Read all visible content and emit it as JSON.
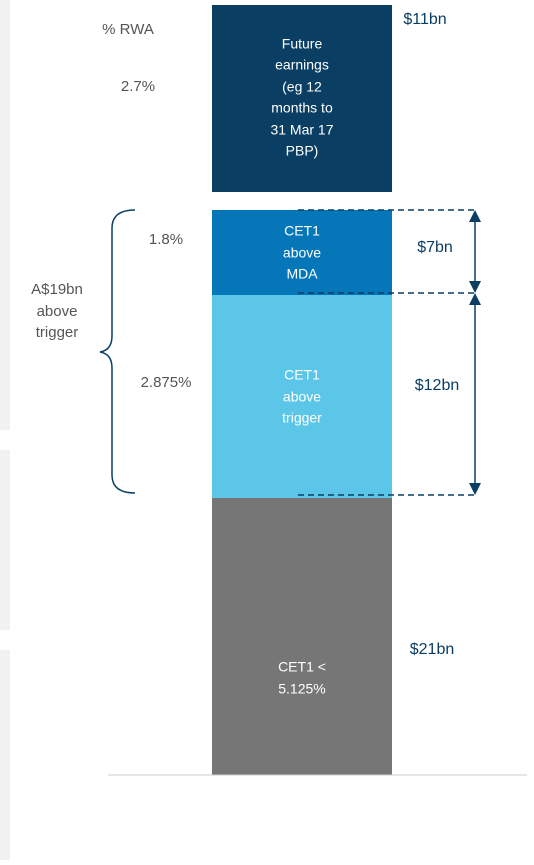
{
  "header": {
    "rwa_label": "% RWA"
  },
  "segments": [
    {
      "lines": [
        "Future",
        "earnings",
        "(eg 12",
        "months to",
        "31 Mar 17",
        "PBP)"
      ],
      "percent": "2.7%",
      "amount": "$11bn"
    },
    {
      "lines": [
        "CET1",
        "above",
        "MDA"
      ],
      "percent": "1.8%",
      "amount": "$7bn"
    },
    {
      "lines": [
        "CET1",
        "above",
        "trigger"
      ],
      "percent": "2.875%",
      "amount": "$12bn"
    },
    {
      "lines": [
        "CET1 <",
        "5.125%"
      ],
      "amount": "$21bn"
    }
  ],
  "brace_label": [
    "A$19bn",
    "above",
    "trigger"
  ]
}
